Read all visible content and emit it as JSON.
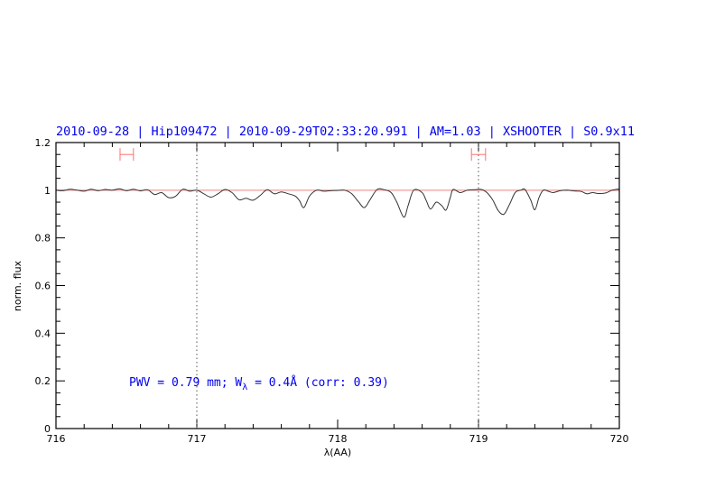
{
  "chart_data": {
    "type": "line",
    "title": "2010-09-28 | Hip109472 | 2010-09-29T02:33:20.991 | AM=1.03 | XSHOOTER | S0.9x11",
    "xlabel": "λ(AA)",
    "ylabel": "norm. flux",
    "xlim": [
      716,
      720
    ],
    "ylim": [
      0,
      1.2
    ],
    "xticks": [
      716,
      717,
      718,
      719,
      720
    ],
    "yticks": [
      0,
      0.2,
      0.4,
      0.6,
      0.8,
      1,
      1.2
    ],
    "ytick_labels": [
      "0",
      "0.2",
      "0.4",
      "0.6",
      "0.8",
      "1",
      "1.2"
    ],
    "grid": false,
    "continuum_level": 1.0,
    "vertical_dotted_lines": [
      717,
      719
    ],
    "error_bars": [
      {
        "x_from": 716.455,
        "x_to": 716.55,
        "y": 1.15
      },
      {
        "x_from": 718.95,
        "x_to": 719.05,
        "y": 1.15
      }
    ],
    "annotation": {
      "prefix": "PWV = 0.79 mm; W",
      "sub": "λ",
      "suffix": " = 0.4Å (corr: 0.39)"
    },
    "colors": {
      "spectrum": "#333333",
      "continuum": "#f08080",
      "error_bars": "#ff7070",
      "text": "#0000ee"
    },
    "series": [
      {
        "x": [
          716.0,
          716.05,
          716.1,
          716.15,
          716.2,
          716.25,
          716.3,
          716.35,
          716.4,
          716.45,
          716.5,
          716.55,
          716.6,
          716.65,
          716.7,
          716.75,
          716.8,
          716.85,
          716.9,
          716.95,
          717.0,
          717.05,
          717.1,
          717.15,
          717.2,
          717.25,
          717.3,
          717.35,
          717.4,
          717.45,
          717.5,
          717.55,
          717.6,
          717.65,
          717.7,
          717.73,
          717.76,
          717.8,
          717.85,
          717.9,
          717.95,
          718.0,
          718.05,
          718.1,
          718.15,
          718.19,
          718.23,
          718.28,
          718.33,
          718.38,
          718.42,
          718.47,
          718.5,
          718.54,
          718.6,
          718.63,
          718.66,
          718.7,
          718.74,
          718.77,
          718.8,
          718.82,
          718.87,
          718.92,
          718.97,
          719.02,
          719.06,
          719.1,
          719.14,
          719.18,
          719.22,
          719.26,
          719.3,
          719.33,
          719.37,
          719.4,
          719.43,
          719.46,
          719.5,
          719.53,
          719.58,
          719.63,
          719.68,
          719.73,
          719.77,
          719.81,
          719.85,
          719.9,
          719.95,
          720.0
        ],
        "y": [
          1.0,
          0.998,
          1.004,
          1.0,
          0.996,
          1.004,
          0.998,
          1.003,
          1.0,
          1.006,
          0.998,
          1.004,
          0.997,
          1.002,
          0.982,
          0.99,
          0.969,
          0.975,
          1.004,
          0.996,
          1.0,
          0.985,
          0.971,
          0.985,
          1.003,
          0.99,
          0.96,
          0.966,
          0.958,
          0.978,
          1.002,
          0.985,
          0.993,
          0.985,
          0.975,
          0.955,
          0.927,
          0.975,
          1.0,
          0.996,
          0.998,
          0.999,
          1.0,
          0.985,
          0.95,
          0.927,
          0.96,
          1.003,
          1.002,
          0.99,
          0.95,
          0.887,
          0.935,
          1.0,
          0.99,
          0.955,
          0.921,
          0.95,
          0.935,
          0.917,
          0.97,
          1.003,
          0.99,
          1.0,
          1.002,
          1.003,
          0.99,
          0.96,
          0.915,
          0.899,
          0.94,
          0.99,
          1.0,
          1.003,
          0.96,
          0.918,
          0.97,
          1.0,
          0.995,
          0.99,
          0.998,
          1.0,
          0.997,
          0.995,
          0.985,
          0.99,
          0.986,
          0.988,
          1.0,
          1.005
        ]
      }
    ]
  }
}
